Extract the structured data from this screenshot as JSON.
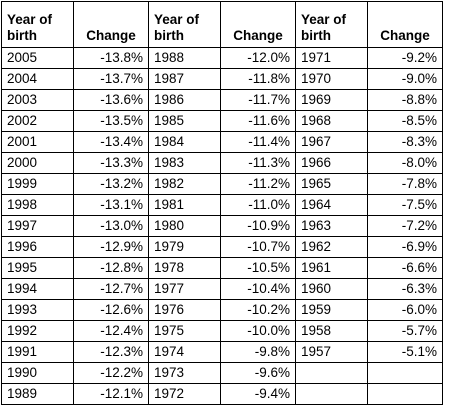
{
  "headers": {
    "year": [
      "Year of",
      "birth"
    ],
    "change": "Change"
  },
  "rows": [
    [
      [
        "2005",
        "-13.8%"
      ],
      [
        "1988",
        "-12.0%"
      ],
      [
        "1971",
        "-9.2%"
      ]
    ],
    [
      [
        "2004",
        "-13.7%"
      ],
      [
        "1987",
        "-11.8%"
      ],
      [
        "1970",
        "-9.0%"
      ]
    ],
    [
      [
        "2003",
        "-13.6%"
      ],
      [
        "1986",
        "-11.7%"
      ],
      [
        "1969",
        "-8.8%"
      ]
    ],
    [
      [
        "2002",
        "-13.5%"
      ],
      [
        "1985",
        "-11.6%"
      ],
      [
        "1968",
        "-8.5%"
      ]
    ],
    [
      [
        "2001",
        "-13.4%"
      ],
      [
        "1984",
        "-11.4%"
      ],
      [
        "1967",
        "-8.3%"
      ]
    ],
    [
      [
        "2000",
        "-13.3%"
      ],
      [
        "1983",
        "-11.3%"
      ],
      [
        "1966",
        "-8.0%"
      ]
    ],
    [
      [
        "1999",
        "-13.2%"
      ],
      [
        "1982",
        "-11.2%"
      ],
      [
        "1965",
        "-7.8%"
      ]
    ],
    [
      [
        "1998",
        "-13.1%"
      ],
      [
        "1981",
        "-11.0%"
      ],
      [
        "1964",
        "-7.5%"
      ]
    ],
    [
      [
        "1997",
        "-13.0%"
      ],
      [
        "1980",
        "-10.9%"
      ],
      [
        "1963",
        "-7.2%"
      ]
    ],
    [
      [
        "1996",
        "-12.9%"
      ],
      [
        "1979",
        "-10.7%"
      ],
      [
        "1962",
        "-6.9%"
      ]
    ],
    [
      [
        "1995",
        "-12.8%"
      ],
      [
        "1978",
        "-10.5%"
      ],
      [
        "1961",
        "-6.6%"
      ]
    ],
    [
      [
        "1994",
        "-12.7%"
      ],
      [
        "1977",
        "-10.4%"
      ],
      [
        "1960",
        "-6.3%"
      ]
    ],
    [
      [
        "1993",
        "-12.6%"
      ],
      [
        "1976",
        "-10.2%"
      ],
      [
        "1959",
        "-6.0%"
      ]
    ],
    [
      [
        "1992",
        "-12.4%"
      ],
      [
        "1975",
        "-10.0%"
      ],
      [
        "1958",
        "-5.7%"
      ]
    ],
    [
      [
        "1991",
        "-12.3%"
      ],
      [
        "1974",
        "-9.8%"
      ],
      [
        "1957",
        "-5.1%"
      ]
    ],
    [
      [
        "1990",
        "-12.2%"
      ],
      [
        "1973",
        "-9.6%"
      ],
      [
        "",
        ""
      ]
    ],
    [
      [
        "1989",
        "-12.1%"
      ],
      [
        "1972",
        "-9.4%"
      ],
      [
        "",
        ""
      ]
    ]
  ]
}
